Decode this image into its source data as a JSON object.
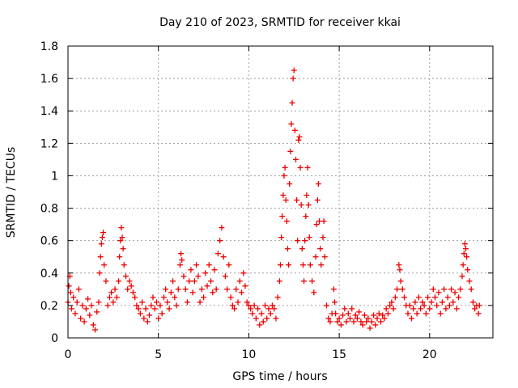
{
  "chart_data": {
    "type": "scatter",
    "title": "Day 210 of 2023, SRMTID for receiver kkai",
    "xlabel": "GPS time / hours",
    "ylabel": "SRMTID / TECUs",
    "xlim": [
      0,
      23.5
    ],
    "ylim": [
      0,
      1.8
    ],
    "x_ticks": [
      0,
      5,
      10,
      15,
      20
    ],
    "x_tick_labels": [
      "0",
      "5",
      "10",
      "15",
      "20"
    ],
    "y_ticks": [
      0,
      0.2,
      0.4,
      0.6,
      0.8,
      1,
      1.2,
      1.4,
      1.6,
      1.8
    ],
    "y_tick_labels": [
      "0",
      "0.2",
      "0.4",
      "0.6",
      "0.8",
      "1",
      "1.2",
      "1.4",
      "1.6",
      "1.8"
    ],
    "grid": true,
    "marker": "+",
    "color": "#ee0000",
    "series": [
      {
        "name": "SRMTID",
        "points": [
          [
            0.0,
            0.22
          ],
          [
            0.05,
            0.32
          ],
          [
            0.1,
            0.38
          ],
          [
            0.15,
            0.28
          ],
          [
            0.2,
            0.18
          ],
          [
            0.3,
            0.25
          ],
          [
            0.4,
            0.15
          ],
          [
            0.5,
            0.22
          ],
          [
            0.6,
            0.3
          ],
          [
            0.7,
            0.12
          ],
          [
            0.8,
            0.2
          ],
          [
            0.9,
            0.1
          ],
          [
            1.0,
            0.18
          ],
          [
            1.1,
            0.24
          ],
          [
            1.2,
            0.14
          ],
          [
            1.3,
            0.2
          ],
          [
            1.4,
            0.08
          ],
          [
            1.5,
            0.05
          ],
          [
            1.6,
            0.16
          ],
          [
            1.7,
            0.22
          ],
          [
            1.75,
            0.4
          ],
          [
            1.8,
            0.5
          ],
          [
            1.85,
            0.58
          ],
          [
            1.9,
            0.62
          ],
          [
            1.95,
            0.65
          ],
          [
            2.0,
            0.45
          ],
          [
            2.1,
            0.35
          ],
          [
            2.2,
            0.2
          ],
          [
            2.3,
            0.25
          ],
          [
            2.4,
            0.28
          ],
          [
            2.5,
            0.22
          ],
          [
            2.6,
            0.3
          ],
          [
            2.7,
            0.25
          ],
          [
            2.8,
            0.35
          ],
          [
            2.85,
            0.5
          ],
          [
            2.9,
            0.6
          ],
          [
            2.95,
            0.68
          ],
          [
            3.0,
            0.62
          ],
          [
            3.05,
            0.55
          ],
          [
            3.1,
            0.45
          ],
          [
            3.2,
            0.38
          ],
          [
            3.3,
            0.3
          ],
          [
            3.4,
            0.35
          ],
          [
            3.5,
            0.32
          ],
          [
            3.6,
            0.28
          ],
          [
            3.7,
            0.25
          ],
          [
            3.8,
            0.2
          ],
          [
            3.9,
            0.18
          ],
          [
            4.0,
            0.15
          ],
          [
            4.1,
            0.22
          ],
          [
            4.2,
            0.12
          ],
          [
            4.3,
            0.18
          ],
          [
            4.4,
            0.1
          ],
          [
            4.5,
            0.14
          ],
          [
            4.6,
            0.2
          ],
          [
            4.7,
            0.25
          ],
          [
            4.8,
            0.18
          ],
          [
            4.9,
            0.22
          ],
          [
            5.0,
            0.12
          ],
          [
            5.1,
            0.2
          ],
          [
            5.2,
            0.15
          ],
          [
            5.3,
            0.25
          ],
          [
            5.4,
            0.3
          ],
          [
            5.5,
            0.22
          ],
          [
            5.6,
            0.18
          ],
          [
            5.7,
            0.28
          ],
          [
            5.8,
            0.35
          ],
          [
            5.9,
            0.25
          ],
          [
            6.0,
            0.2
          ],
          [
            6.1,
            0.3
          ],
          [
            6.2,
            0.45
          ],
          [
            6.25,
            0.52
          ],
          [
            6.3,
            0.48
          ],
          [
            6.4,
            0.38
          ],
          [
            6.5,
            0.3
          ],
          [
            6.6,
            0.22
          ],
          [
            6.7,
            0.35
          ],
          [
            6.8,
            0.42
          ],
          [
            6.9,
            0.28
          ],
          [
            7.0,
            0.35
          ],
          [
            7.1,
            0.45
          ],
          [
            7.2,
            0.38
          ],
          [
            7.3,
            0.22
          ],
          [
            7.4,
            0.3
          ],
          [
            7.5,
            0.25
          ],
          [
            7.6,
            0.4
          ],
          [
            7.7,
            0.32
          ],
          [
            7.8,
            0.45
          ],
          [
            7.9,
            0.35
          ],
          [
            8.0,
            0.28
          ],
          [
            8.1,
            0.42
          ],
          [
            8.2,
            0.3
          ],
          [
            8.3,
            0.52
          ],
          [
            8.4,
            0.6
          ],
          [
            8.5,
            0.68
          ],
          [
            8.6,
            0.5
          ],
          [
            8.7,
            0.38
          ],
          [
            8.8,
            0.3
          ],
          [
            8.9,
            0.45
          ],
          [
            9.0,
            0.25
          ],
          [
            9.1,
            0.2
          ],
          [
            9.2,
            0.18
          ],
          [
            9.3,
            0.3
          ],
          [
            9.4,
            0.22
          ],
          [
            9.5,
            0.35
          ],
          [
            9.6,
            0.28
          ],
          [
            9.7,
            0.4
          ],
          [
            9.8,
            0.32
          ],
          [
            9.9,
            0.22
          ],
          [
            10.0,
            0.2
          ],
          [
            10.1,
            0.18
          ],
          [
            10.2,
            0.15
          ],
          [
            10.3,
            0.2
          ],
          [
            10.4,
            0.12
          ],
          [
            10.5,
            0.18
          ],
          [
            10.6,
            0.08
          ],
          [
            10.7,
            0.15
          ],
          [
            10.8,
            0.1
          ],
          [
            10.9,
            0.2
          ],
          [
            11.0,
            0.12
          ],
          [
            11.1,
            0.18
          ],
          [
            11.2,
            0.15
          ],
          [
            11.3,
            0.2
          ],
          [
            11.4,
            0.18
          ],
          [
            11.5,
            0.12
          ],
          [
            11.6,
            0.25
          ],
          [
            11.7,
            0.35
          ],
          [
            11.75,
            0.45
          ],
          [
            11.8,
            0.62
          ],
          [
            11.85,
            0.75
          ],
          [
            11.9,
            0.88
          ],
          [
            11.95,
            1.0
          ],
          [
            12.0,
            1.05
          ],
          [
            12.05,
            0.85
          ],
          [
            12.1,
            0.72
          ],
          [
            12.15,
            0.55
          ],
          [
            12.2,
            0.45
          ],
          [
            12.25,
            0.95
          ],
          [
            12.3,
            1.15
          ],
          [
            12.35,
            1.32
          ],
          [
            12.4,
            1.45
          ],
          [
            12.45,
            1.6
          ],
          [
            12.5,
            1.65
          ],
          [
            12.55,
            1.28
          ],
          [
            12.6,
            1.1
          ],
          [
            12.65,
            0.85
          ],
          [
            12.7,
            0.6
          ],
          [
            12.75,
            1.22
          ],
          [
            12.8,
            1.24
          ],
          [
            12.85,
            1.05
          ],
          [
            12.9,
            0.82
          ],
          [
            12.95,
            0.55
          ],
          [
            13.0,
            0.45
          ],
          [
            13.05,
            0.35
          ],
          [
            13.1,
            0.6
          ],
          [
            13.15,
            0.75
          ],
          [
            13.2,
            0.88
          ],
          [
            13.25,
            1.05
          ],
          [
            13.3,
            0.82
          ],
          [
            13.35,
            0.62
          ],
          [
            13.4,
            0.45
          ],
          [
            13.5,
            0.35
          ],
          [
            13.6,
            0.28
          ],
          [
            13.7,
            0.5
          ],
          [
            13.75,
            0.7
          ],
          [
            13.8,
            0.85
          ],
          [
            13.85,
            0.95
          ],
          [
            13.9,
            0.72
          ],
          [
            13.95,
            0.55
          ],
          [
            14.0,
            0.45
          ],
          [
            14.1,
            0.62
          ],
          [
            14.15,
            0.72
          ],
          [
            14.2,
            0.5
          ],
          [
            14.3,
            0.2
          ],
          [
            14.4,
            0.12
          ],
          [
            14.5,
            0.1
          ],
          [
            14.6,
            0.15
          ],
          [
            14.7,
            0.3
          ],
          [
            14.75,
            0.22
          ],
          [
            14.8,
            0.15
          ],
          [
            14.9,
            0.1
          ],
          [
            15.0,
            0.12
          ],
          [
            15.1,
            0.08
          ],
          [
            15.2,
            0.14
          ],
          [
            15.3,
            0.18
          ],
          [
            15.4,
            0.1
          ],
          [
            15.5,
            0.15
          ],
          [
            15.6,
            0.12
          ],
          [
            15.7,
            0.18
          ],
          [
            15.8,
            0.1
          ],
          [
            15.9,
            0.14
          ],
          [
            16.0,
            0.12
          ],
          [
            16.1,
            0.16
          ],
          [
            16.2,
            0.1
          ],
          [
            16.3,
            0.08
          ],
          [
            16.4,
            0.14
          ],
          [
            16.5,
            0.1
          ],
          [
            16.6,
            0.12
          ],
          [
            16.7,
            0.06
          ],
          [
            16.8,
            0.1
          ],
          [
            16.9,
            0.14
          ],
          [
            17.0,
            0.08
          ],
          [
            17.1,
            0.12
          ],
          [
            17.2,
            0.15
          ],
          [
            17.3,
            0.1
          ],
          [
            17.4,
            0.14
          ],
          [
            17.5,
            0.12
          ],
          [
            17.6,
            0.18
          ],
          [
            17.7,
            0.15
          ],
          [
            17.8,
            0.2
          ],
          [
            17.9,
            0.22
          ],
          [
            18.0,
            0.18
          ],
          [
            18.1,
            0.25
          ],
          [
            18.2,
            0.3
          ],
          [
            18.3,
            0.45
          ],
          [
            18.35,
            0.42
          ],
          [
            18.4,
            0.35
          ],
          [
            18.5,
            0.3
          ],
          [
            18.6,
            0.25
          ],
          [
            18.7,
            0.2
          ],
          [
            18.8,
            0.15
          ],
          [
            18.9,
            0.2
          ],
          [
            19.0,
            0.12
          ],
          [
            19.1,
            0.18
          ],
          [
            19.2,
            0.22
          ],
          [
            19.3,
            0.15
          ],
          [
            19.4,
            0.25
          ],
          [
            19.5,
            0.18
          ],
          [
            19.6,
            0.22
          ],
          [
            19.7,
            0.2
          ],
          [
            19.8,
            0.15
          ],
          [
            19.9,
            0.25
          ],
          [
            20.0,
            0.18
          ],
          [
            20.1,
            0.22
          ],
          [
            20.2,
            0.3
          ],
          [
            20.3,
            0.25
          ],
          [
            20.4,
            0.2
          ],
          [
            20.5,
            0.28
          ],
          [
            20.6,
            0.15
          ],
          [
            20.7,
            0.22
          ],
          [
            20.8,
            0.3
          ],
          [
            20.9,
            0.18
          ],
          [
            21.0,
            0.25
          ],
          [
            21.1,
            0.2
          ],
          [
            21.2,
            0.3
          ],
          [
            21.3,
            0.22
          ],
          [
            21.4,
            0.28
          ],
          [
            21.5,
            0.18
          ],
          [
            21.6,
            0.25
          ],
          [
            21.7,
            0.3
          ],
          [
            21.8,
            0.38
          ],
          [
            21.85,
            0.45
          ],
          [
            21.9,
            0.52
          ],
          [
            21.95,
            0.58
          ],
          [
            22.0,
            0.55
          ],
          [
            22.05,
            0.5
          ],
          [
            22.1,
            0.42
          ],
          [
            22.2,
            0.35
          ],
          [
            22.3,
            0.3
          ],
          [
            22.4,
            0.22
          ],
          [
            22.5,
            0.18
          ],
          [
            22.6,
            0.2
          ],
          [
            22.7,
            0.15
          ],
          [
            22.75,
            0.2
          ]
        ]
      }
    ]
  }
}
